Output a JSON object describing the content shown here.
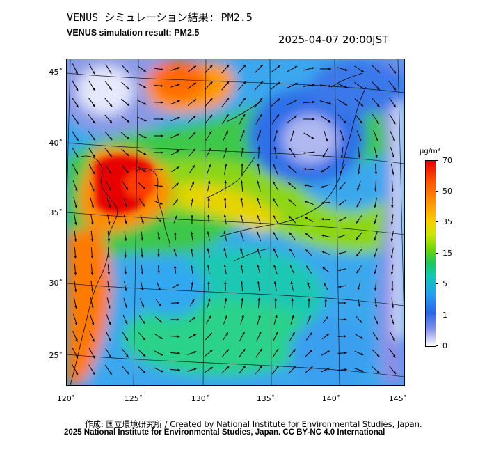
{
  "header": {
    "title_jp": "VENUS シミュレーション結果: PM2.5",
    "title_en": "VENUS simulation result: PM2.5",
    "timestamp": "2025-04-07 20:00JST"
  },
  "map": {
    "variable": "PM2.5",
    "lat_labels": [
      "45˚",
      "40˚",
      "35˚",
      "30˚",
      "25˚"
    ],
    "lon_labels": [
      "120˚",
      "125˚",
      "130˚",
      "135˚",
      "140˚",
      "145˚"
    ],
    "lat_range": [
      23,
      46
    ],
    "lon_range": [
      120,
      145
    ]
  },
  "colorbar": {
    "unit": "μg/m³",
    "labels": [
      "70",
      "50",
      "35",
      "15",
      "5",
      "1",
      "0"
    ]
  },
  "footer": {
    "credit_jp": "作成: 国立環境研究所 / Created by National Institute for Environmental Studies, Japan.",
    "copyright": "2025 National Institute for Environmental Studies, Japan. CC BY-NC 4.0 International"
  }
}
